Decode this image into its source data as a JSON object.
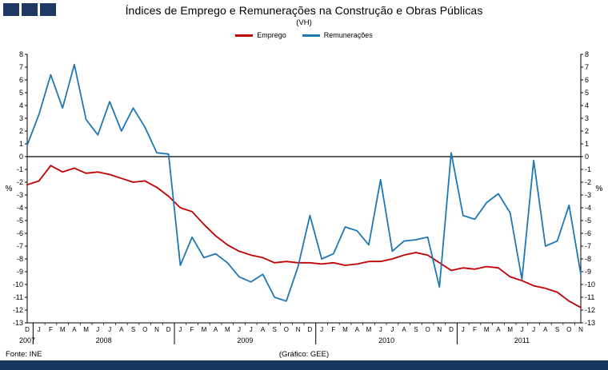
{
  "header": {
    "title": "Índices de Emprego e Remunerações na Construção e Obras Públicas",
    "subtitle": "(VH)",
    "brand_color": "#1F3864"
  },
  "legend": [
    {
      "label": "Emprego",
      "color": "#C00000"
    },
    {
      "label": "Remunerações",
      "color": "#1F78B4"
    }
  ],
  "footer": {
    "source": "Fonte: INE",
    "credit": "(Gráfico: GEE)",
    "bar_color": "#17365D"
  },
  "chart_data": {
    "type": "line",
    "title": "Índices de Emprego e Remunerações na Construção e Obras Públicas",
    "subtitle": "(VH)",
    "ylabel_left": "%",
    "ylabel_right": "%",
    "ylim": [
      -13,
      8
    ],
    "ytick_step": 1,
    "grid": false,
    "legend_position": "top-center",
    "x_labels": [
      "D",
      "J",
      "F",
      "M",
      "A",
      "M",
      "J",
      "J",
      "A",
      "S",
      "O",
      "N",
      "D",
      "J",
      "F",
      "M",
      "A",
      "M",
      "J",
      "J",
      "A",
      "S",
      "O",
      "N",
      "D",
      "J",
      "F",
      "M",
      "A",
      "M",
      "J",
      "J",
      "A",
      "S",
      "O",
      "N",
      "D",
      "J",
      "F",
      "M",
      "A",
      "M",
      "J",
      "J",
      "A",
      "S",
      "O",
      "N"
    ],
    "years": [
      {
        "label": "2007",
        "count": 1
      },
      {
        "label": "2008",
        "count": 12
      },
      {
        "label": "2009",
        "count": 12
      },
      {
        "label": "2010",
        "count": 12
      },
      {
        "label": "2011",
        "count": 11
      }
    ],
    "series": [
      {
        "name": "Emprego",
        "color": "#C00000",
        "values": [
          -2.2,
          -1.9,
          -0.7,
          -1.2,
          -0.9,
          -1.3,
          -1.2,
          -1.4,
          -1.7,
          -2.0,
          -1.9,
          -2.4,
          -3.1,
          -4.0,
          -4.3,
          -5.3,
          -6.2,
          -6.9,
          -7.4,
          -7.7,
          -7.9,
          -8.3,
          -8.2,
          -8.3,
          -8.3,
          -8.4,
          -8.3,
          -8.5,
          -8.4,
          -8.2,
          -8.2,
          -8.0,
          -7.7,
          -7.5,
          -7.7,
          -8.3,
          -8.9,
          -8.7,
          -8.8,
          -8.6,
          -8.7,
          -9.4,
          -9.7,
          -10.1,
          -10.3,
          -10.6,
          -11.3,
          -11.8
        ]
      },
      {
        "name": "Remunerações",
        "color": "#1F78B4",
        "values": [
          0.9,
          3.3,
          6.4,
          3.8,
          7.2,
          2.9,
          1.7,
          4.3,
          2.0,
          3.8,
          2.3,
          0.3,
          0.2,
          -8.5,
          -6.3,
          -7.9,
          -7.6,
          -8.3,
          -9.4,
          -9.8,
          -9.2,
          -11.0,
          -11.3,
          -8.6,
          -4.6,
          -8.0,
          -7.6,
          -5.5,
          -5.8,
          -6.9,
          -1.8,
          -7.4,
          -6.6,
          -6.5,
          -6.3,
          -10.2,
          0.3,
          -4.6,
          -4.9,
          -3.6,
          -2.9,
          -4.4,
          -9.6,
          -0.3,
          -7.0,
          -6.6,
          -3.8,
          -9.2
        ]
      }
    ]
  }
}
